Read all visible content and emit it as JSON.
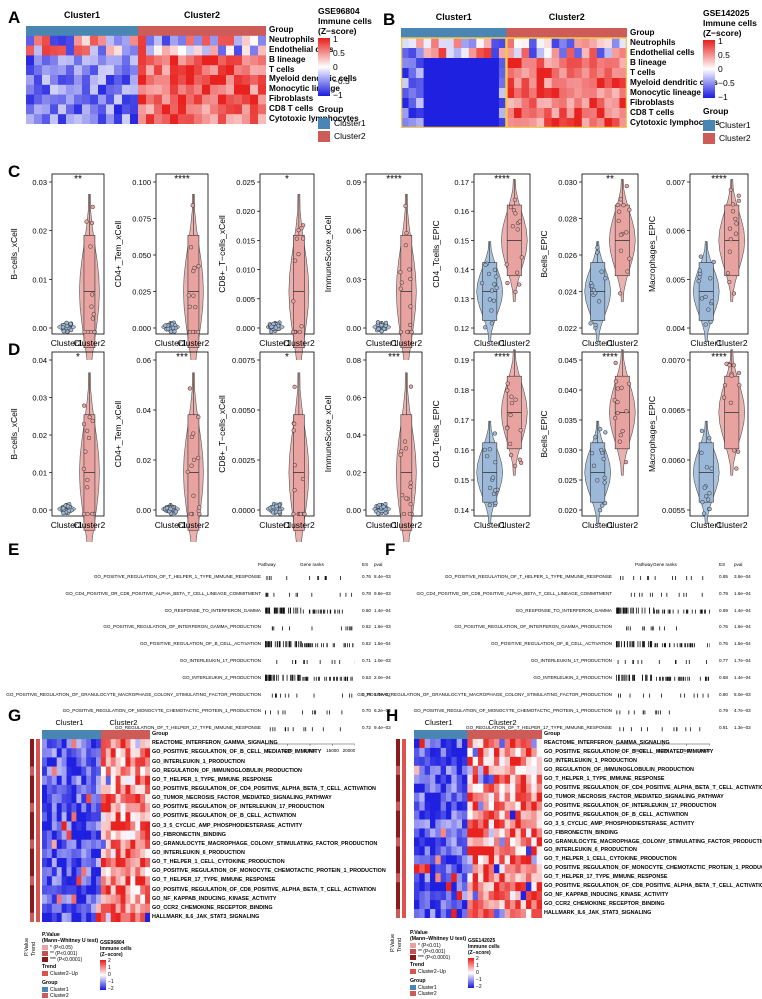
{
  "colors": {
    "cluster1": "#4a86b4",
    "cluster2": "#cd5b57",
    "hm_high": "#e8221f",
    "hm_mid": "#ffffff",
    "hm_low": "#1f20e0",
    "violin1": "#9bb8d9",
    "violin2": "#e8a3a0",
    "border_yellow": "#f2c94c",
    "trend_red": "#d9534f",
    "pvalue_dark": "#8b1a1a"
  },
  "panelA": {
    "letter": "A",
    "cluster1": "Cluster1",
    "cluster2": "Cluster2",
    "dataset": "GSE96804",
    "legend_title": "Immune cells\n(Z−score)",
    "ticks": [
      "1",
      "0.5",
      "0",
      "−0.5",
      "−1"
    ],
    "group_title": "Group",
    "group_items": [
      "Cluster1",
      "Cluster2"
    ],
    "rows": [
      "Group",
      "Neutrophils",
      "Endothelial cells",
      "B lineage",
      "T cells",
      "Myeloid dendritic cells",
      "Monocytic lineage",
      "Fibroblasts",
      "CD8 T cells",
      "Cytotoxic lymphocytes"
    ]
  },
  "panelB": {
    "letter": "B",
    "cluster1": "Cluster1",
    "cluster2": "Cluster2",
    "dataset": "GSE142025",
    "legend_title": "Immune cells\n(Z−score)",
    "ticks": [
      "1",
      "0.5",
      "0",
      "−0.5",
      "−1"
    ],
    "group_title": "Group",
    "group_items": [
      "Cluster1",
      "Cluster2"
    ],
    "rows": [
      "Group",
      "Neutrophils",
      "Endothelial cells",
      "B lineage",
      "T cells",
      "Myeloid dendritic cells",
      "Monocytic lineage",
      "Fibroblasts",
      "CD8 T cells",
      "Cytotoxic lymphocytes"
    ]
  },
  "panelC": {
    "letter": "C",
    "xcats": [
      "Cluster1",
      "Cluster2"
    ],
    "plots": [
      {
        "ylabel": "B−cells_xCell",
        "sig": "**",
        "ticks": [
          "0.00",
          "0.01",
          "0.02",
          "0.03"
        ]
      },
      {
        "ylabel": "CD4+_Tem_xCell",
        "sig": "****",
        "ticks": [
          "0.000",
          "0.025",
          "0.050",
          "0.075",
          "0.100"
        ]
      },
      {
        "ylabel": "CD8+_T−cells_xCell",
        "sig": "*",
        "ticks": [
          "0.000",
          "0.005",
          "0.010",
          "0.015",
          "0.020",
          "0.025"
        ]
      },
      {
        "ylabel": "ImmuneScore_xCell",
        "sig": "****",
        "ticks": [
          "0.00",
          "0.03",
          "0.06",
          "0.09"
        ]
      },
      {
        "ylabel": "CD4_Tcells_EPIC",
        "sig": "****",
        "ticks": [
          "0.12",
          "0.13",
          "0.14",
          "0.15",
          "0.16",
          "0.17"
        ]
      },
      {
        "ylabel": "Bcells_EPIC",
        "sig": "**",
        "ticks": [
          "0.022",
          "0.024",
          "0.026",
          "0.028",
          "0.030"
        ]
      },
      {
        "ylabel": "Macrophages_EPIC",
        "sig": "****",
        "ticks": [
          "0.004",
          "0.005",
          "0.006",
          "0.007"
        ]
      }
    ]
  },
  "panelD": {
    "letter": "D",
    "xcats": [
      "Cluster1",
      "Cluster2"
    ],
    "plots": [
      {
        "ylabel": "B−cells_xCell",
        "sig": "*",
        "ticks": [
          "0.00",
          "0.01",
          "0.02",
          "0.03",
          "0.04"
        ]
      },
      {
        "ylabel": "CD4+_Tem_xCell",
        "sig": "***",
        "ticks": [
          "0.00",
          "0.02",
          "0.04",
          "0.06"
        ]
      },
      {
        "ylabel": "CD8+_T−cells_xCell",
        "sig": "*",
        "ticks": [
          "0.0000",
          "0.0025",
          "0.0050",
          "0.0075"
        ]
      },
      {
        "ylabel": "ImmuneScore_xCell",
        "sig": "***",
        "ticks": [
          "0.00",
          "0.02",
          "0.04",
          "0.06",
          "0.08"
        ]
      },
      {
        "ylabel": "CD4_Tcells_EPIC",
        "sig": "****",
        "ticks": [
          "0.14",
          "0.15",
          "0.16",
          "0.17",
          "0.18",
          "0.19"
        ]
      },
      {
        "ylabel": "Bcells_EPIC",
        "sig": "****",
        "ticks": [
          "0.020",
          "0.025",
          "0.030",
          "0.035",
          "0.040",
          "0.045"
        ]
      },
      {
        "ylabel": "Macrophages_EPIC",
        "sig": "****",
        "ticks": [
          "0.0055",
          "0.0060",
          "0.0065",
          "0.0070"
        ]
      }
    ]
  },
  "panelE": {
    "letter": "E",
    "headers": [
      "Pathway",
      "Gene ranks",
      "ES",
      "pval"
    ],
    "rows": [
      {
        "pathway": "GO_POSITIVE_REGULATION_OF_T_HELPER_1_TYPE_IMMUNE_RESPONSE",
        "es": "0.76",
        "pval": "8.4e−03"
      },
      {
        "pathway": "GO_CD4_POSITIVE_OR_CD8_POSITIVE_ALPHA_BETA_T_CELL_LINEAGE_COMMITMENT",
        "es": "0.78",
        "pval": "9.8e−03"
      },
      {
        "pathway": "GO_RESPONSE_TO_INTERFERON_GAMMA",
        "es": "0.60",
        "pval": "1.4e−04"
      },
      {
        "pathway": "GO_POSITIVE_REGULATION_OF_INTERFERON_GAMMA_PRODUCTION",
        "es": "0.62",
        "pval": "1.6e−03"
      },
      {
        "pathway": "GO_POSITIVE_REGULATION_OF_B_CELL_ACTIVATION",
        "es": "0.62",
        "pval": "1.5e−04"
      },
      {
        "pathway": "GO_INTERLEUKIN_17_PRODUCTION",
        "es": "0.71",
        "pval": "1.0e−03"
      },
      {
        "pathway": "GO_INTERLEUKIN_2_PRODUCTION",
        "es": "0.53",
        "pval": "2.0e−04"
      },
      {
        "pathway": "GO_POSITIVE_REGULATION_OF_GRANULOCYTE_MACROPHAGE_COLONY_STIMULATING_FACTOR_PRODUCTION",
        "es": "0.79",
        "pval": "1.0e−02"
      },
      {
        "pathway": "GO_POSITIVE_REGULATION_OF_MONOCYTE_CHEMOTACTIC_PROTEIN_1_PRODUCTION",
        "es": "0.70",
        "pval": "6.2e−03"
      },
      {
        "pathway": "GO_REGULATION_OF_T_HELPER_17_TYPE_IMMUNE_RESPONSE",
        "es": "0.72",
        "pval": "9.4e−03"
      }
    ],
    "axis": [
      "0",
      "5000",
      "10000",
      "15000",
      "20000"
    ]
  },
  "panelF": {
    "letter": "F",
    "headers": [
      "Pathway",
      "Gene ranks",
      "ES",
      "pval"
    ],
    "rows": [
      {
        "pathway": "GO_POSITIVE_REGULATION_OF_T_HELPER_1_TYPE_IMMUNE_RESPONSE",
        "es": "0.85",
        "pval": "3.8e−04"
      },
      {
        "pathway": "GO_CD4_POSITIVE_OR_CD8_POSITIVE_ALPHA_BETA_T_CELL_LINEAGE_COMMITMENT",
        "es": "0.79",
        "pval": "1.6e−04"
      },
      {
        "pathway": "GO_RESPONSE_TO_INTERFERON_GAMMA",
        "es": "0.69",
        "pval": "1.4e−04"
      },
      {
        "pathway": "GO_POSITIVE_REGULATION_OF_INTERFERON_GAMMA_PRODUCTION",
        "es": "0.76",
        "pval": "1.6e−04"
      },
      {
        "pathway": "GO_POSITIVE_REGULATION_OF_B_CELL_ACTIVATION",
        "es": "0.76",
        "pval": "1.5e−04"
      },
      {
        "pathway": "GO_INTERLEUKIN_17_PRODUCTION",
        "es": "0.77",
        "pval": "1.7e−04"
      },
      {
        "pathway": "GO_INTERLEUKIN_2_PRODUCTION",
        "es": "0.68",
        "pval": "1.4e−04"
      },
      {
        "pathway": "GO_POSITIVE_REGULATION_OF_GRANULOCYTE_MACROPHAGE_COLONY_STIMULATING_FACTOR_PRODUCTION",
        "es": "0.80",
        "pval": "8.0e−03"
      },
      {
        "pathway": "GO_POSITIVE_REGULATION_OF_MONOCYTE_CHEMOTACTIC_PROTEIN_1_PRODUCTION",
        "es": "0.79",
        "pval": "4.7e−03"
      },
      {
        "pathway": "GO_REGULATION_OF_T_HELPER_17_TYPE_IMMUNE_RESPONSE",
        "es": "0.81",
        "pval": "1.3e−03"
      }
    ],
    "axis": [
      "0",
      "2500",
      "5000",
      "7500",
      "10000"
    ]
  },
  "panelG": {
    "letter": "G",
    "cluster1": "Cluster1",
    "cluster2": "Cluster2",
    "rows": [
      "Group",
      "REACTOME_INTERFERON_GAMMA_SIGNALING",
      "GO_POSITIVE_REGULATION_OF_B_CELL_MEDIATED_IMMUNITY",
      "GO_INTERLEUKIN_1_PRODUCTION",
      "GO_REGULATION_OF_IMMUNOGLOBULIN_PRODUCTION",
      "GO_T_HELPER_1_TYPE_IMMUNE_RESPONSE",
      "GO_POSITIVE_REGULATION_OF_CD4_POSITIVE_ALPHA_BETA_T_CELL_ACTIVATION",
      "GO_TUMOR_NECROSIS_FACTOR_MEDIATED_SIGNALING_PATHWAY",
      "GO_POSITIVE_REGULATION_OF_INTERLEUKIN_17_PRODUCTION",
      "GO_POSITIVE_REGULATION_OF_B_CELL_ACTIVATION",
      "GO_3_5_CYCLIC_AMP_PHOSPHODIESTERASE_ACTIVITY",
      "GO_FIBRONECTIN_BINDING",
      "GO_GRANULOCYTE_MACROPHAGE_COLONY_STIMULATING_FACTOR_PRODUCTION",
      "GO_INTERLEUKIN_6_PRODUCTION",
      "GO_T_HELPER_1_CELL_CYTOKINE_PRODUCTION",
      "GO_POSITIVE_REGULATION_OF_MONOCYTE_CHEMOTACTIC_PROTEIN_1_PRODUCTION",
      "GO_T_HELPER_17_TYPE_IMMUNE_RESPONSE",
      "GO_POSITIVE_REGULATION_OF_CD8_POSITIVE_ALPHA_BETA_T_CELL_ACTIVATION",
      "GO_NF_KAPPAB_INDUCING_KINASE_ACTIVITY",
      "GO_CCR2_CHEMOKINE_RECEPTOR_BINDING",
      "HALLMARK_IL6_JAK_STAT3_SIGNALING"
    ],
    "side_labels": [
      "P.Value",
      "Trend"
    ],
    "pv_title": "P.Value\n(Mann−Whitney U test)",
    "pv_items": [
      "* (P<0.05)",
      "** (P<0.001)",
      "*** (P<0.0001)"
    ],
    "trend_title": "Trend",
    "trend_item": "Cluster2−Up",
    "group_title": "Group",
    "group_items": [
      "Cluster1",
      "Cluster2"
    ],
    "scale_title": "GSE96804\nImmune cells\n(Z−score)",
    "scale_ticks": [
      "2",
      "1",
      "0",
      "−1",
      "−2"
    ]
  },
  "panelH": {
    "letter": "H",
    "cluster1": "Cluster1",
    "cluster2": "Cluster2",
    "rows": [
      "Group",
      "REACTOME_INTERFERON_GAMMA_SIGNALING",
      "GO_POSITIVE_REGULATION_OF_B_CELL_MEDIATED_IMMUNITY",
      "GO_INTERLEUKIN_1_PRODUCTION",
      "GO_REGULATION_OF_IMMUNOGLOBULIN_PRODUCTION",
      "GO_T_HELPER_1_TYPE_IMMUNE_RESPONSE",
      "GO_POSITIVE_REGULATION_OF_CD4_POSITIVE_ALPHA_BETA_T_CELL_ACTIVATION",
      "GO_TUMOR_NECROSIS_FACTOR_MEDIATED_SIGNALING_PATHWAY",
      "GO_POSITIVE_REGULATION_OF_INTERLEUKIN_17_PRODUCTION",
      "GO_POSITIVE_REGULATION_OF_B_CELL_ACTIVATION",
      "GO_3_5_CYCLIC_AMP_PHOSPHODIESTERASE_ACTIVITY",
      "GO_FIBRONECTIN_BINDING",
      "GO_GRANULOCYTE_MACROPHAGE_COLONY_STIMULATING_FACTOR_PRODUCTION",
      "GO_INTERLEUKIN_6_PRODUCTION",
      "GO_T_HELPER_1_CELL_CYTOKINE_PRODUCTION",
      "GO_POSITIVE_REGULATION_OF_MONOCYTE_CHEMOTACTIC_PROTEIN_1_PRODUCTION",
      "GO_T_HELPER_17_TYPE_IMMUNE_RESPONSE",
      "GO_POSITIVE_REGULATION_OF_CD8_POSITIVE_ALPHA_BETA_T_CELL_ACTIVATION",
      "GO_NF_KAPPAB_INDUCING_KINASE_ACTIVITY",
      "GO_CCR2_CHEMOKINE_RECEPTOR_BINDING",
      "HALLMARK_IL6_JAK_STAT3_SIGNALING"
    ],
    "side_labels": [
      "P.Value",
      "Trend"
    ],
    "pv_title": "P.Value\n(Mann−Whitney U test)",
    "pv_items": [
      "* (P<0.01)",
      "** (P<0.001)",
      "*** (P<0.0001)"
    ],
    "trend_title": "Trend",
    "trend_item": "Cluster2−Up",
    "group_title": "Group",
    "group_items": [
      "Cluster1",
      "Cluster2"
    ],
    "scale_title": "GSE142025\nImmune cells\n(Z−score)",
    "scale_ticks": [
      "2",
      "1",
      "0",
      "−1",
      "−2"
    ]
  }
}
